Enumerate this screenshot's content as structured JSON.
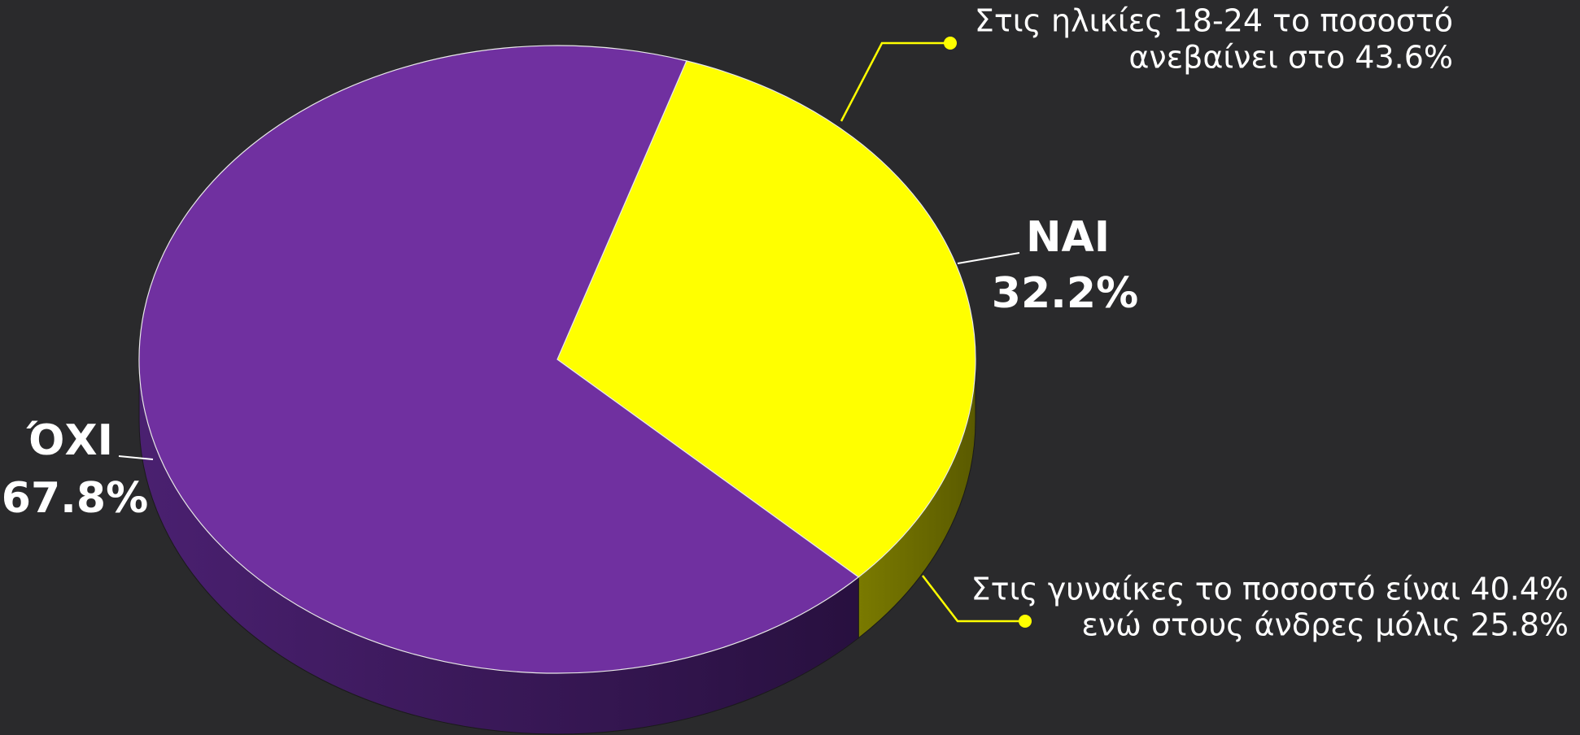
{
  "chart_data": {
    "type": "pie3d",
    "categories": [
      "ΝΑΙ",
      "ΌΧΙ"
    ],
    "values": [
      32.2,
      67.8
    ],
    "value_labels": [
      "32.2%",
      "67.8%"
    ],
    "colors": [
      "#ffff00",
      "#7030a0"
    ],
    "annotations": [
      {
        "lines": [
          "Στις ηλικίες 18-24 το ποσοστό",
          "ανεβαίνει στο 43.6%"
        ]
      },
      {
        "lines": [
          "Στις γυναίκες το ποσοστό είναι 40.4%",
          "ενώ στους άνδρες μόλις 25.8%"
        ]
      }
    ]
  }
}
